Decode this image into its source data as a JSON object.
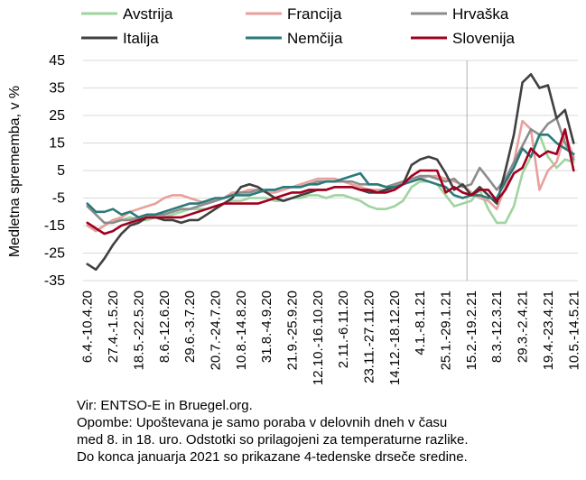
{
  "chart_data": {
    "type": "line",
    "ylabel": "Medletna sprememba, v %",
    "ylim": [
      -35,
      45
    ],
    "yticks": [
      -35,
      -25,
      -15,
      -5,
      5,
      15,
      25,
      35,
      45
    ],
    "grid": "horizontal",
    "legend_position": "top",
    "categories": [
      "6.4.-10.4.20",
      "13.4.-17.4.20",
      "20.4.-24.4.20",
      "27.4.-1.5.20",
      "4.5.-8.5.20",
      "11.5.-15.5.20",
      "18.5.-22.5.20",
      "25.5.-29.5.20",
      "1.6.-5.6.20",
      "8.6.-12.6.20",
      "15.6.-19.6.20",
      "22.6.-26.6.20",
      "29.6.-3.7.20",
      "6.7.-10.7.20",
      "13.7.-17.7.20",
      "20.7.-24.7.20",
      "27.7.-31.7.20",
      "3.8.-7.8.20",
      "10.8.-14.8.20",
      "17.8.-21.8.20",
      "24.8.-28.8.20",
      "31.8.-4.9.20",
      "7.9.-11.9.20",
      "14.9.-18.9.20",
      "21.9.-25.9.20",
      "28.9.-2.10.20",
      "5.10.-9.10.20",
      "12.10.-16.10.20",
      "19.10.-23.10.20",
      "26.10.-30.10.20",
      "2.11.-6.11.20",
      "9.11.-13.11.20",
      "16.11.-20.11.20",
      "23.11.-27.11.20",
      "30.11.-4.12.20",
      "7.12.-11.12.20",
      "14.12.-18.12.20",
      "21.12.-25.12.20",
      "28.12.-1.1.21",
      "4.1.-8.1.21",
      "11.1.-15.1.21",
      "18.1.-22.1.21",
      "25.1.-29.1.21",
      "1.2.-5.2.21",
      "8.2.-12.2.21",
      "15.2.-19.2.21",
      "22.2.-26.2.21",
      "1.3.-5.3.21",
      "8.3.-12.3.21",
      "15.3.-19.3.21",
      "22.3.-26.3.21",
      "29.3.-2.4.21",
      "5.4.-9.4.21",
      "12.4.-16.4.21",
      "19.4.-23.4.21",
      "26.4.-30.4.21",
      "3.5.-7.5.21",
      "10.5.-14.5.21"
    ],
    "shown_tick_labels": [
      "6.4.-10.4.20",
      "27.4.-1.5.20",
      "18.5.-22.5.20",
      "8.6.-12.6.20",
      "29.6.-3.7.20",
      "20.7.-24.7.20",
      "10.8.-14.8.20",
      "31.8.-4.9.20",
      "21.9.-25.9.20",
      "12.10.-16.10.20",
      "2.11.-6.11.20",
      "23.11.-27.11.20",
      "14.12.-18.12.20",
      "4.1.-8.1.21",
      "25.1.-29.1.21",
      "15.2.-19.2.21",
      "8.3.-12.3.21",
      "29.3.-2.4.21",
      "19.4.-23.4.21",
      "10.5.-14.5.21"
    ],
    "vline_after_category": "8.2.-12.2.21",
    "series": [
      {
        "name": "Avstrija",
        "color": "#9fd49f",
        "values": [
          -15,
          -17,
          -15,
          -13,
          -13,
          -12,
          -13,
          -13,
          -12,
          -12,
          -11,
          -10,
          -9,
          -9,
          -9,
          -8,
          -7,
          -6,
          -6,
          -5,
          -5,
          -5,
          -6,
          -6,
          -5,
          -5,
          -4,
          -4,
          -5,
          -4,
          -4,
          -5,
          -6,
          -8,
          -9,
          -9,
          -8,
          -6,
          -1,
          1,
          1,
          0,
          -4,
          -8,
          -7,
          -6,
          -2,
          -9,
          -14,
          -14,
          -8,
          4,
          10,
          18,
          10,
          6,
          9,
          8
        ]
      },
      {
        "name": "Francija",
        "color": "#e8a09c",
        "values": [
          -15,
          -17,
          -15,
          -13,
          -12,
          -10,
          -9,
          -8,
          -7,
          -5,
          -4,
          -4,
          -5,
          -6,
          -7,
          -6,
          -5,
          -3,
          -3,
          -2,
          -2,
          -3,
          -3,
          -2,
          -1,
          0,
          1,
          2,
          2,
          2,
          1,
          0,
          -1,
          -2,
          -2,
          -2,
          -1,
          0,
          1,
          2,
          3,
          3,
          2,
          1,
          0,
          -3,
          -5,
          -6,
          -9,
          -1,
          8,
          23,
          20,
          -2,
          5,
          8,
          18,
          10
        ]
      },
      {
        "name": "Hrvaška",
        "color": "#8c8c8c",
        "values": [
          -8,
          -11,
          -14,
          -14,
          -13,
          -13,
          -12,
          -11,
          -11,
          -11,
          -10,
          -9,
          -9,
          -8,
          -7,
          -6,
          -5,
          -4,
          -3,
          -3,
          -2,
          -2,
          -2,
          -1,
          -1,
          -1,
          0,
          1,
          1,
          1,
          1,
          1,
          0,
          0,
          0,
          -1,
          0,
          1,
          2,
          3,
          3,
          2,
          1,
          2,
          -1,
          0,
          6,
          2,
          -2,
          2,
          8,
          14,
          20,
          18,
          22,
          24,
          15,
          9
        ]
      },
      {
        "name": "Italija",
        "color": "#404040",
        "values": [
          -29,
          -31,
          -27,
          -22,
          -18,
          -15,
          -14,
          -12,
          -12,
          -13,
          -13,
          -14,
          -13,
          -13,
          -11,
          -9,
          -7,
          -5,
          -1,
          0,
          -1,
          -3,
          -5,
          -6,
          -5,
          -4,
          -3,
          -2,
          -2,
          -1,
          -1,
          -1,
          -2,
          -3,
          -3,
          -2,
          -1,
          0,
          7,
          9,
          10,
          9,
          4,
          -2,
          0,
          -4,
          -1,
          -4,
          -7,
          5,
          18,
          37,
          40,
          35,
          36,
          24,
          27,
          15
        ]
      },
      {
        "name": "Nemčija",
        "color": "#2a7a7a",
        "values": [
          -7,
          -10,
          -10,
          -9,
          -11,
          -10,
          -12,
          -11,
          -11,
          -10,
          -9,
          -8,
          -7,
          -7,
          -6,
          -5,
          -5,
          -4,
          -4,
          -4,
          -3,
          -2,
          -2,
          -1,
          -1,
          -1,
          0,
          0,
          1,
          1,
          2,
          3,
          4,
          0,
          0,
          -1,
          -1,
          0,
          1,
          2,
          1,
          0,
          -1,
          -4,
          -5,
          -4,
          -4,
          -5,
          -5,
          1,
          6,
          13,
          10,
          18,
          18,
          15,
          13,
          11
        ]
      },
      {
        "name": "Slovenija",
        "color": "#a00020",
        "values": [
          -14,
          -16,
          -18,
          -17,
          -15,
          -14,
          -13,
          -12,
          -12,
          -12,
          -12,
          -12,
          -11,
          -10,
          -9,
          -8,
          -7,
          -7,
          -7,
          -7,
          -7,
          -6,
          -5,
          -4,
          -3,
          -3,
          -2,
          -2,
          -2,
          -1,
          -1,
          -1,
          -2,
          -2,
          -3,
          -3,
          -2,
          0,
          3,
          5,
          5,
          5,
          -3,
          -1,
          -3,
          -4,
          -2,
          -2,
          -6,
          -2,
          4,
          6,
          13,
          10,
          12,
          11,
          20,
          5
        ]
      }
    ]
  },
  "notes": {
    "source": "Vir: ENTSO-E in Bruegel.org.",
    "line1": "Opombe: Upoštevana je samo poraba v delovnih dneh v času",
    "line2": "med 8. in 18. uro. Odstotki so prilagojeni za temperaturne razlike.",
    "line3": "Do konca januarja 2021 so prikazane 4-tedenske drseče sredine."
  }
}
